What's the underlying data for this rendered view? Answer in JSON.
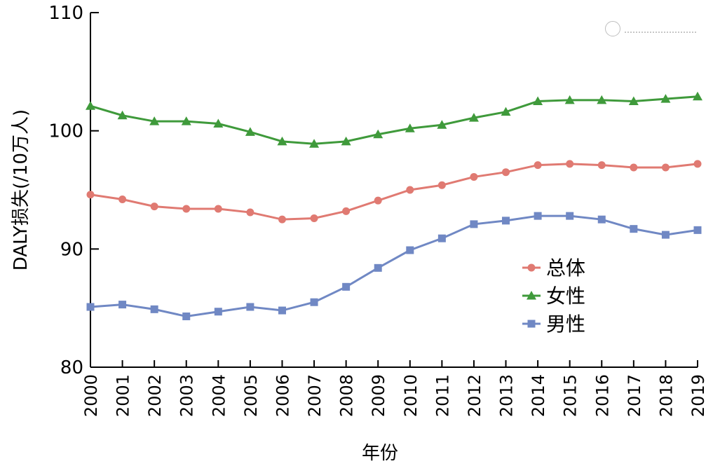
{
  "chart_data": {
    "type": "line",
    "xlabel": "年份",
    "ylabel": "DALY损失(/10万人)",
    "ylim": [
      80,
      110
    ],
    "yticks": [
      80,
      90,
      100,
      110
    ],
    "x": [
      "2000",
      "2001",
      "2002",
      "2003",
      "2004",
      "2005",
      "2006",
      "2007",
      "2008",
      "2009",
      "2010",
      "2011",
      "2012",
      "2013",
      "2014",
      "2015",
      "2016",
      "2017",
      "2018",
      "2019"
    ],
    "grid": false,
    "legend_position": "inside-right",
    "series": [
      {
        "name": "总体",
        "color": "#e07a72",
        "marker": "circle",
        "values": [
          94.6,
          94.2,
          93.6,
          93.4,
          93.4,
          93.1,
          92.5,
          92.6,
          93.2,
          94.1,
          95.0,
          95.4,
          96.1,
          96.5,
          97.1,
          97.2,
          97.1,
          96.9,
          96.9,
          97.2
        ]
      },
      {
        "name": "女性",
        "color": "#3f9a3b",
        "marker": "triangle",
        "values": [
          102.1,
          101.3,
          100.8,
          100.8,
          100.6,
          99.9,
          99.1,
          98.9,
          99.1,
          99.7,
          100.2,
          100.5,
          101.1,
          101.6,
          102.5,
          102.6,
          102.6,
          102.5,
          102.7,
          102.9
        ]
      },
      {
        "name": "男性",
        "color": "#7088c4",
        "marker": "square",
        "values": [
          85.1,
          85.3,
          84.9,
          84.3,
          84.7,
          85.1,
          84.8,
          85.5,
          86.8,
          88.4,
          89.9,
          90.9,
          92.1,
          92.4,
          92.8,
          92.8,
          92.5,
          91.7,
          91.2,
          91.6
        ]
      }
    ]
  },
  "watermark": {
    "icon": "seal-logo",
    "text": "中华医学会"
  }
}
